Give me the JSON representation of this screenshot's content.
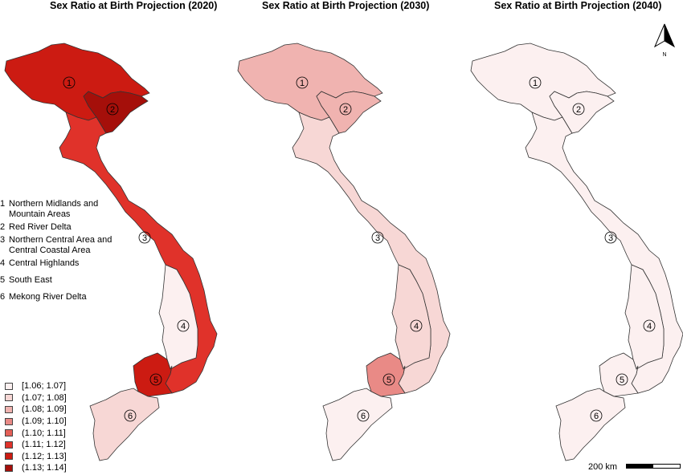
{
  "titles": {
    "t2020": "Sex Ratio at Birth Projection (2020)",
    "t2030": "Sex Ratio at Birth Projection (2030)",
    "t2040": "Sex Ratio at Birth Projection (2040)"
  },
  "regions": [
    {
      "num": "1",
      "name": "Northern Midlands and\nMountain Areas"
    },
    {
      "num": "2",
      "name": "Red River Delta"
    },
    {
      "num": "3",
      "name": "Northern Central Area and\nCentral Coastal Area"
    },
    {
      "num": "4",
      "name": "Central Highlands"
    },
    {
      "num": "5",
      "name": "South East"
    },
    {
      "num": "6",
      "name": "Mekong River Delta"
    }
  ],
  "legend_classes": [
    {
      "label": "[1.06; 1.07]",
      "color": "#fcf0f0"
    },
    {
      "label": "(1.07; 1.08]",
      "color": "#f7d7d5"
    },
    {
      "label": "(1.08; 1.09]",
      "color": "#f0b3b0"
    },
    {
      "label": "(1.09; 1.10]",
      "color": "#e98a86"
    },
    {
      "label": "(1.10; 1.11]",
      "color": "#e45f57"
    },
    {
      "label": "(1.11; 1.12]",
      "color": "#e0322a"
    },
    {
      "label": "(1.12; 1.13]",
      "color": "#cc1b12"
    },
    {
      "label": "(1.13; 1.14]",
      "color": "#a50f0a"
    }
  ],
  "map_colors": {
    "2020": {
      "r1": "#cc1b12",
      "r2": "#a50f0a",
      "r3": "#e0322a",
      "r4": "#fcf0f0",
      "r5": "#cc1b12",
      "r6": "#f7d7d5"
    },
    "2030": {
      "r1": "#f0b3b0",
      "r2": "#f0b3b0",
      "r3": "#f7d7d5",
      "r4": "#f7d7d5",
      "r5": "#e98a86",
      "r6": "#fcf0f0"
    },
    "2040": {
      "r1": "#fcf0f0",
      "r2": "#fcf0f0",
      "r3": "#fcf0f0",
      "r4": "#fcf0f0",
      "r5": "#fcf0f0",
      "r6": "#fcf0f0"
    }
  },
  "scale": {
    "label": "200 km"
  },
  "north": {
    "label": "N"
  }
}
